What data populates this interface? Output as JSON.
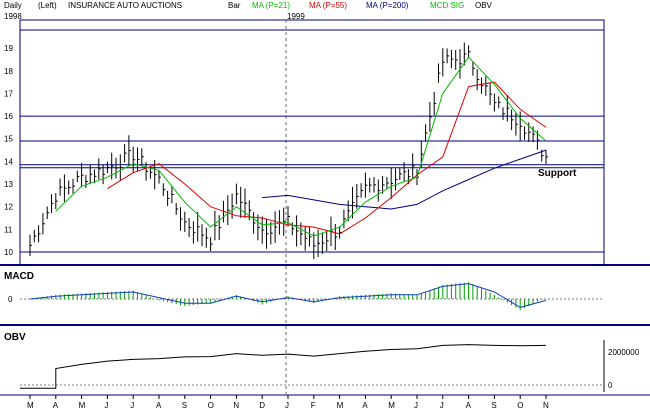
{
  "header": {
    "period": "Daily",
    "side": "(Left)",
    "name": "INSURANCE AUTO AUCTIONS",
    "style": "Bar",
    "ma21": "MA (P=21)",
    "ma55": "MA (P=55)",
    "ma200": "MA (P=200)",
    "mcd_sig": "MCD SIG",
    "obv": "OBV",
    "year_start": "1998",
    "year_mid": "1999"
  },
  "colors": {
    "price": "#000000",
    "ma21": "#00bb00",
    "ma55": "#dd0000",
    "ma200": "#000080",
    "signal": "#1040c0",
    "hist": "#00a000",
    "hline": "#000080",
    "panel_border": "#000080",
    "zero": "#808080"
  },
  "chart_data": [
    {
      "type": "bar",
      "title": "INSURANCE AUTO AUCTIONS",
      "subtitle": "Daily (Left) Bar",
      "y_ticks": [
        "10",
        "11",
        "12",
        "13",
        "14",
        "15",
        "16",
        "17",
        "18",
        "19"
      ],
      "ylim": [
        9.75,
        19.9
      ],
      "x_months": [
        "M",
        "A",
        "M",
        "J",
        "J",
        "A",
        "S",
        "O",
        "N",
        "D",
        "J",
        "F",
        "M",
        "A",
        "M",
        "J",
        "J",
        "A",
        "S",
        "O",
        "N"
      ],
      "horizontal_lines": [
        19.8,
        16.0,
        14.9,
        13.85,
        13.72,
        10.0
      ],
      "annotation": "Support",
      "month_closes": [
        10.3,
        12.5,
        13.3,
        13.7,
        14.3,
        13.2,
        11.3,
        10.6,
        12.5,
        11.0,
        11.3,
        10.3,
        11.0,
        12.8,
        13.2,
        13.6,
        18.4,
        18.6,
        16.5,
        15.8,
        14.2
      ],
      "ma21_monthly": [
        null,
        11.8,
        12.9,
        13.3,
        13.9,
        13.6,
        12.2,
        11.1,
        12.0,
        11.2,
        11.3,
        10.7,
        11.1,
        12.2,
        12.9,
        13.3,
        17.0,
        18.6,
        17.4,
        15.9,
        14.9
      ],
      "ma55_monthly": [
        null,
        null,
        null,
        12.8,
        13.5,
        13.9,
        13.0,
        12.0,
        11.6,
        11.5,
        11.2,
        11.1,
        10.8,
        11.5,
        12.4,
        13.4,
        14.2,
        17.3,
        17.5,
        16.3,
        15.5
      ],
      "ma200_monthly": [
        null,
        null,
        null,
        null,
        null,
        null,
        null,
        null,
        null,
        12.4,
        12.5,
        12.3,
        12.1,
        12.0,
        11.9,
        12.1,
        12.7,
        13.2,
        13.7,
        14.1,
        14.5
      ],
      "last_close": 14.2
    },
    {
      "type": "bar",
      "title": "MACD",
      "series": [
        {
          "name": "MCD SIG"
        },
        {
          "name": "MACD"
        }
      ],
      "ylim": [
        -1.1,
        1.3
      ],
      "y_ticks": [
        "0"
      ],
      "x_months": [
        "M",
        "A",
        "M",
        "J",
        "J",
        "A",
        "S",
        "O",
        "N",
        "D",
        "J",
        "F",
        "M",
        "A",
        "M",
        "J",
        "J",
        "A",
        "S",
        "O",
        "N"
      ],
      "hist_monthly": [
        0.0,
        0.3,
        0.4,
        0.5,
        0.6,
        -0.1,
        -0.5,
        -0.3,
        0.3,
        -0.4,
        0.2,
        -0.3,
        0.2,
        0.3,
        0.4,
        0.3,
        1.0,
        1.2,
        0.3,
        -0.8,
        0.1
      ],
      "signal_monthly": [
        0.0,
        0.2,
        0.3,
        0.4,
        0.5,
        0.1,
        -0.3,
        -0.3,
        0.2,
        -0.2,
        0.1,
        -0.2,
        0.1,
        0.2,
        0.3,
        0.3,
        0.9,
        1.1,
        0.5,
        -0.6,
        -0.1
      ]
    },
    {
      "type": "line",
      "title": "OBV",
      "y_ticks": [
        "2000000",
        "0"
      ],
      "ylim": [
        -600000,
        2800000
      ],
      "x_months": [
        "M",
        "A",
        "M",
        "J",
        "J",
        "A",
        "S",
        "O",
        "N",
        "D",
        "J",
        "F",
        "M",
        "A",
        "M",
        "J",
        "J",
        "A",
        "S",
        "O",
        "N"
      ],
      "obv_monthly": [
        -200000,
        1000000,
        1250000,
        1450000,
        1550000,
        1600000,
        1700000,
        1720000,
        1900000,
        1800000,
        1870000,
        1750000,
        1900000,
        2050000,
        2150000,
        2200000,
        2400000,
        2450000,
        2400000,
        2380000,
        2400000
      ]
    }
  ]
}
